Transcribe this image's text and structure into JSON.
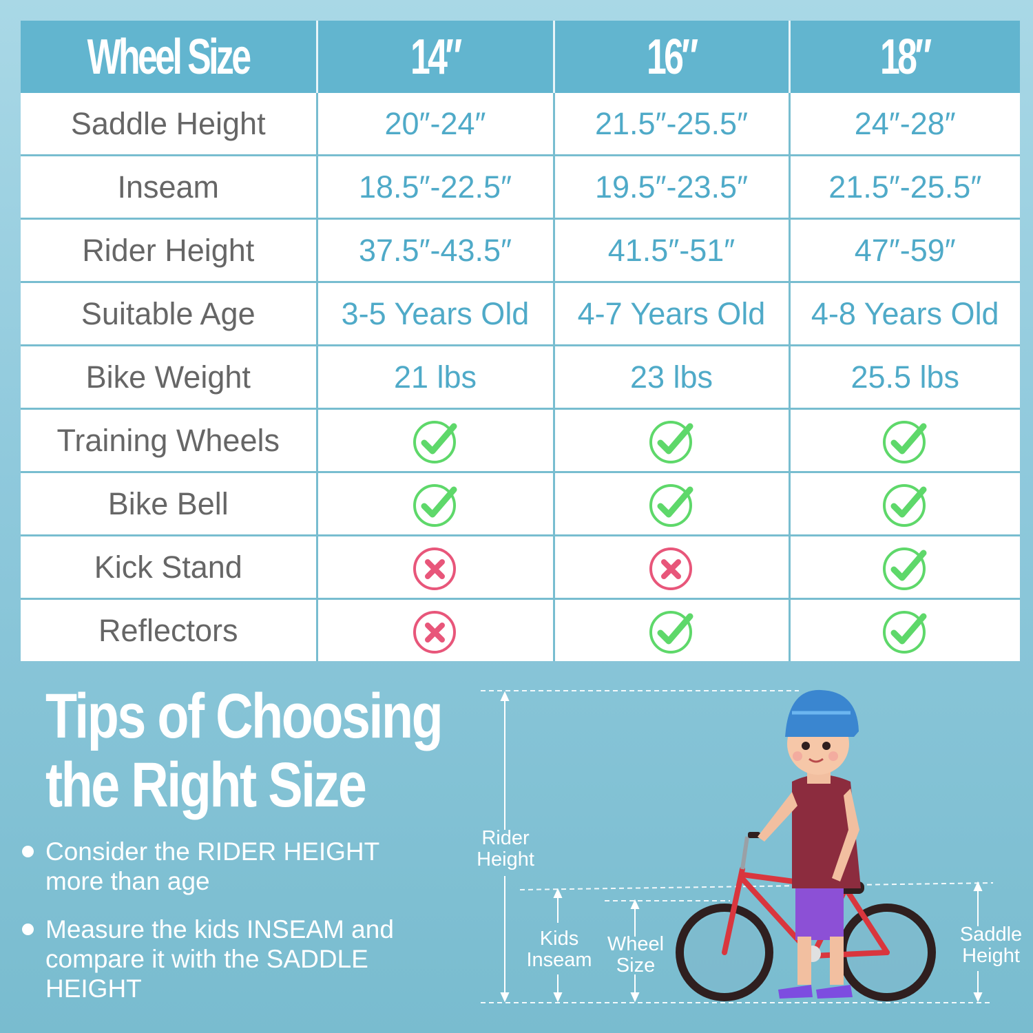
{
  "table": {
    "headers": [
      "Wheel Size",
      "14″",
      "16″",
      "18″"
    ],
    "rows": [
      {
        "label": "Saddle Height",
        "values": [
          "20″-24″",
          "21.5″-25.5″",
          "24″-28″"
        ]
      },
      {
        "label": "Inseam",
        "values": [
          "18.5″-22.5″",
          "19.5″-23.5″",
          "21.5″-25.5″"
        ]
      },
      {
        "label": "Rider Height",
        "values": [
          "37.5″-43.5″",
          "41.5″-51″",
          "47″-59″"
        ]
      },
      {
        "label": "Suitable Age",
        "values": [
          "3-5 Years Old",
          "4-7 Years Old",
          "4-8 Years Old"
        ]
      },
      {
        "label": "Bike Weight",
        "values": [
          "21 lbs",
          "23 lbs",
          "25.5 lbs"
        ]
      }
    ],
    "features": [
      {
        "label": "Training Wheels",
        "values": [
          true,
          true,
          true
        ]
      },
      {
        "label": "Bike Bell",
        "values": [
          true,
          true,
          true
        ]
      },
      {
        "label": "Kick Stand",
        "values": [
          false,
          false,
          true
        ]
      },
      {
        "label": "Reflectors",
        "values": [
          false,
          true,
          true
        ]
      }
    ],
    "colors": {
      "header": "#62b5cf",
      "value_text": "#4faac8",
      "check": "#5ed86a",
      "cross": "#e8567a"
    }
  },
  "tips": {
    "title_line1": "Tips of Choosing",
    "title_line2": "the Right Size",
    "items": [
      {
        "line1": "Consider the RIDER HEIGHT",
        "line2": "more than age"
      },
      {
        "line1": "Measure the kids INSEAM and",
        "line2": "compare it with the SADDLE",
        "line3": "HEIGHT"
      }
    ]
  },
  "diagram": {
    "rider_height": {
      "line1": "Rider",
      "line2": "Height"
    },
    "kids_inseam": {
      "line1": "Kids",
      "line2": "Inseam"
    },
    "wheel_size": {
      "line1": "Wheel",
      "line2": "Size"
    },
    "saddle_height": {
      "line1": "Saddle",
      "line2": "Height"
    }
  }
}
